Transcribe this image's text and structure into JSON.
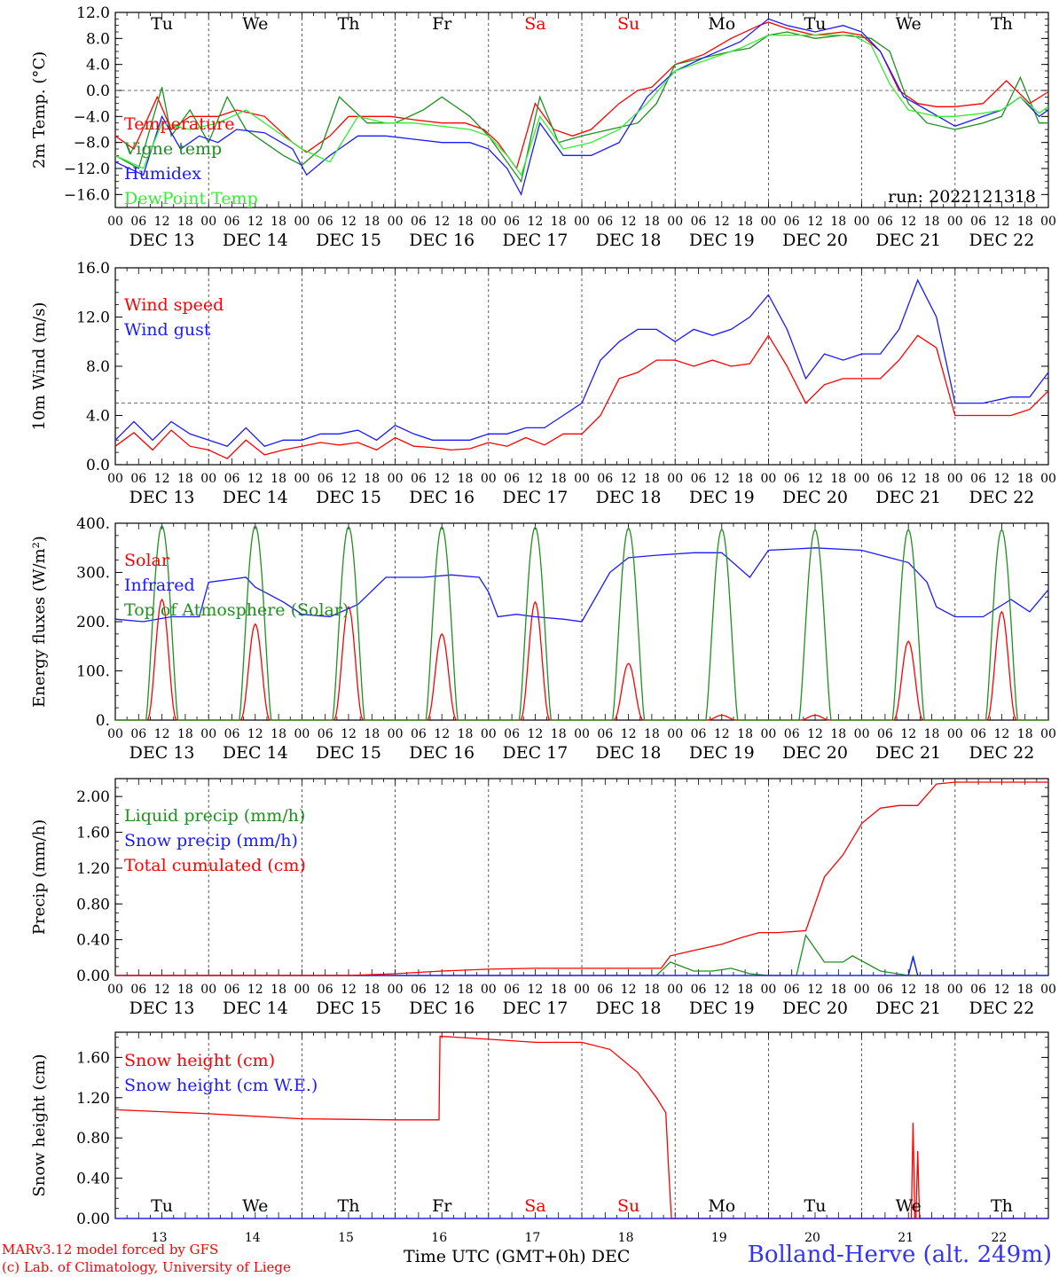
{
  "meta": {
    "run_label": "run: 2022121318",
    "credit_line1": "MARv3.12 model forced by GFS",
    "credit_line2": "(c) Lab. of Climatology, University of Liege",
    "station": "Bolland-Herve (alt. 249m)",
    "xaxis_title": "Time UTC (GMT+0h) DEC"
  },
  "colors": {
    "red": "#ff0000",
    "green": "#1f8f1f",
    "blue": "#1a1aff",
    "lightgreen": "#33ee33",
    "grey": "#555555"
  },
  "days": [
    "Tu",
    "We",
    "Th",
    "Fr",
    "Sa",
    "Su",
    "Mo",
    "Tu",
    "We",
    "Th"
  ],
  "weekend_days": [
    "Sa",
    "Su"
  ],
  "date_labels": [
    "DEC 13",
    "DEC 14",
    "DEC 15",
    "DEC 16",
    "DEC 17",
    "DEC 18",
    "DEC 19",
    "DEC 20",
    "DEC 21",
    "DEC 22"
  ],
  "hour_ticks": [
    "00",
    "06",
    "12",
    "18"
  ],
  "bottom_day_numbers": [
    "13",
    "14",
    "15",
    "16",
    "17",
    "18",
    "19",
    "20",
    "21",
    "22"
  ],
  "chart_data": [
    {
      "id": "temp",
      "type": "line",
      "ylabel": "2m Temp. (°C)",
      "ylim": [
        -18,
        12
      ],
      "yticks": [
        -16,
        -12,
        -8,
        -4,
        0,
        4,
        8,
        12
      ],
      "ytick_labels": [
        "−16.0",
        "−12.0",
        "−8.0",
        "−4.0",
        "0.0",
        "4.0",
        "8.0",
        "12.0"
      ],
      "ref_line": 0,
      "x_unit": "day_offset_from_DEC13_00UTC",
      "series": [
        {
          "name": "Temperature",
          "color": "red",
          "x": [
            0,
            0.2,
            0.45,
            0.6,
            0.8,
            1.1,
            1.3,
            1.6,
            1.9,
            2.05,
            2.3,
            2.5,
            2.7,
            2.95,
            3.2,
            3.5,
            3.75,
            3.95,
            4.1,
            4.3,
            4.5,
            4.7,
            4.9,
            5.1,
            5.4,
            5.6,
            5.75,
            6.0,
            6.3,
            6.6,
            6.9,
            7.0,
            7.2,
            7.5,
            7.8,
            8.0,
            8.2,
            8.4,
            8.6,
            8.8,
            9.0,
            9.3,
            9.55,
            9.8,
            10.0
          ],
          "values": [
            -7,
            -9,
            -1,
            -6,
            -4,
            -4,
            -3,
            -4,
            -8,
            -9.5,
            -7,
            -4,
            -4,
            -4,
            -4.5,
            -5,
            -5,
            -6,
            -8,
            -12,
            -2,
            -6,
            -7,
            -6,
            -2,
            0,
            0.5,
            4,
            5.5,
            8,
            10,
            10.5,
            9.5,
            8.5,
            9,
            8.5,
            6,
            0,
            -2,
            -2.5,
            -2.5,
            -2,
            1.5,
            -2,
            -0.2
          ]
        },
        {
          "name": "Vigne temp",
          "color": "green",
          "x": [
            0,
            0.25,
            0.5,
            0.6,
            0.8,
            1.0,
            1.2,
            1.4,
            1.6,
            1.8,
            2.0,
            2.2,
            2.4,
            2.7,
            3.0,
            3.3,
            3.5,
            3.8,
            4.0,
            4.2,
            4.35,
            4.55,
            4.75,
            5.0,
            5.3,
            5.6,
            5.8,
            6.0,
            6.3,
            6.6,
            6.8,
            7.0,
            7.2,
            7.5,
            7.8,
            8.1,
            8.3,
            8.5,
            8.7,
            9.0,
            9.3,
            9.5,
            9.7,
            9.9,
            10.0
          ],
          "values": [
            -10,
            -12,
            0.5,
            -7,
            -3,
            -8,
            -1,
            -6,
            -8,
            -10,
            -11.5,
            -9,
            -1,
            -5,
            -5,
            -3,
            -1,
            -4,
            -7,
            -11,
            -14,
            -1,
            -8,
            -7,
            -6,
            -5,
            -2,
            4,
            5,
            6,
            6.5,
            8.5,
            9,
            8,
            8.5,
            8,
            6,
            -2,
            -5,
            -6,
            -5,
            -4,
            2,
            -5,
            -5
          ]
        },
        {
          "name": "Humidex",
          "color": "blue",
          "x": [
            0,
            0.3,
            0.5,
            0.7,
            0.9,
            1.1,
            1.3,
            1.6,
            1.9,
            2.05,
            2.3,
            2.6,
            2.9,
            3.2,
            3.5,
            3.8,
            4.0,
            4.2,
            4.35,
            4.55,
            4.8,
            5.1,
            5.4,
            5.7,
            6.0,
            6.3,
            6.7,
            7.0,
            7.2,
            7.5,
            7.8,
            8.0,
            8.2,
            8.45,
            8.7,
            9.0,
            9.3,
            9.5,
            9.7,
            9.9,
            10.0
          ],
          "values": [
            -11,
            -13,
            -4,
            -9,
            -7,
            -8,
            -6,
            -6.5,
            -9,
            -13,
            -10,
            -7,
            -7,
            -7.5,
            -8,
            -8,
            -9,
            -12,
            -16,
            -5,
            -10,
            -10,
            -8,
            -1,
            3,
            5,
            7.5,
            11,
            10,
            9,
            10,
            9,
            6,
            -1,
            -3,
            -5.5,
            -4,
            -3,
            -1,
            -4,
            -3
          ]
        },
        {
          "name": "DewPoint Temp",
          "color": "lightgreen",
          "x": [
            0,
            0.3,
            0.5,
            0.8,
            1.1,
            1.4,
            1.7,
            2.0,
            2.3,
            2.6,
            2.9,
            3.2,
            3.5,
            3.8,
            4.0,
            4.2,
            4.35,
            4.55,
            4.8,
            5.1,
            5.4,
            5.7,
            6.0,
            6.3,
            6.7,
            7.0,
            7.3,
            7.6,
            7.9,
            8.1,
            8.3,
            8.5,
            8.8,
            9.0,
            9.3,
            9.5,
            9.7,
            9.9,
            10.0
          ],
          "values": [
            -10,
            -12,
            -5,
            -6,
            -5,
            -3,
            -6,
            -9,
            -11,
            -4,
            -5,
            -5,
            -5.5,
            -6,
            -7,
            -10,
            -13,
            -4,
            -9,
            -8,
            -6,
            -2,
            3,
            4.5,
            6.5,
            8.5,
            8.5,
            8.5,
            8.5,
            7,
            1,
            -3,
            -4,
            -4,
            -3.5,
            -3,
            -1,
            -3.5,
            -2.5
          ]
        }
      ]
    },
    {
      "id": "wind",
      "type": "line",
      "ylabel": "10m Wind (m/s)",
      "ylim": [
        0,
        16
      ],
      "yticks": [
        0,
        4,
        8,
        12,
        16
      ],
      "ytick_labels": [
        "0.0",
        "4.0",
        "8.0",
        "12.0",
        "16.0"
      ],
      "ref_line": 5,
      "series": [
        {
          "name": "Wind speed",
          "color": "red",
          "x": [
            0,
            0.2,
            0.4,
            0.6,
            0.8,
            1.0,
            1.2,
            1.4,
            1.6,
            1.8,
            2.0,
            2.2,
            2.4,
            2.6,
            2.8,
            3.0,
            3.2,
            3.4,
            3.6,
            3.8,
            4.0,
            4.2,
            4.4,
            4.6,
            4.8,
            5.0,
            5.2,
            5.4,
            5.6,
            5.8,
            6.0,
            6.2,
            6.4,
            6.6,
            6.8,
            7.0,
            7.2,
            7.4,
            7.6,
            7.8,
            8.0,
            8.2,
            8.4,
            8.6,
            8.8,
            9.0,
            9.3,
            9.6,
            9.8,
            10.0
          ],
          "values": [
            1.5,
            2.6,
            1.2,
            2.8,
            1.5,
            1.2,
            0.5,
            2,
            0.8,
            1.2,
            1.5,
            1.8,
            1.6,
            1.8,
            1.2,
            2.2,
            1.5,
            1.4,
            1.2,
            1.3,
            1.8,
            1.5,
            2.2,
            1.6,
            2.5,
            2.5,
            4,
            7,
            7.5,
            8.5,
            8.5,
            8,
            8.5,
            8,
            8.2,
            10.5,
            8,
            5,
            6.5,
            7,
            7,
            7,
            8.5,
            10.5,
            9.5,
            4,
            4,
            4,
            4.5,
            6
          ]
        },
        {
          "name": "Wind gust",
          "color": "blue",
          "x": [
            0,
            0.2,
            0.4,
            0.6,
            0.8,
            1.0,
            1.2,
            1.4,
            1.6,
            1.8,
            2.0,
            2.2,
            2.4,
            2.6,
            2.8,
            3.0,
            3.2,
            3.4,
            3.6,
            3.8,
            4.0,
            4.2,
            4.4,
            4.6,
            4.8,
            5.0,
            5.2,
            5.4,
            5.6,
            5.8,
            6.0,
            6.2,
            6.4,
            6.6,
            6.8,
            7.0,
            7.2,
            7.4,
            7.6,
            7.8,
            8.0,
            8.2,
            8.4,
            8.6,
            8.8,
            9.0,
            9.3,
            9.6,
            9.8,
            10.0
          ],
          "values": [
            2,
            3.5,
            2,
            3.5,
            2.5,
            2,
            1.5,
            3,
            1.5,
            2,
            2,
            2.5,
            2.5,
            2.8,
            2,
            3.2,
            2.5,
            2,
            2,
            2,
            2.5,
            2.5,
            3,
            3,
            4,
            5,
            8.5,
            10,
            11,
            11,
            10,
            11,
            10.5,
            11,
            12,
            13.8,
            11,
            7,
            9,
            8.5,
            9,
            9,
            11,
            15,
            12,
            5,
            5,
            5.5,
            5.5,
            7.5
          ]
        }
      ]
    },
    {
      "id": "energy",
      "type": "line",
      "ylabel": "Energy fluxes (W/m²)",
      "ylim": [
        0,
        400
      ],
      "yticks": [
        0,
        100,
        200,
        300,
        400
      ],
      "ytick_labels": [
        "0.",
        "100.",
        "200.",
        "300.",
        "400."
      ],
      "series": [
        {
          "name": "Solar",
          "color": "red",
          "peaks": [
            245,
            195,
            230,
            175,
            240,
            115,
            10,
            10,
            160,
            220
          ]
        },
        {
          "name": "Infrared",
          "color": "blue",
          "x": [
            0,
            0.3,
            0.6,
            0.9,
            1.0,
            1.4,
            1.5,
            1.8,
            2.0,
            2.3,
            2.6,
            2.9,
            3.1,
            3.3,
            3.6,
            3.9,
            4.0,
            4.1,
            4.3,
            4.5,
            4.8,
            5.0,
            5.3,
            5.5,
            5.8,
            6.2,
            6.5,
            6.8,
            7.0,
            7.5,
            8.0,
            8.3,
            8.5,
            8.7,
            8.8,
            9.0,
            9.3,
            9.6,
            9.8,
            10.0
          ],
          "values": [
            205,
            200,
            210,
            210,
            280,
            290,
            270,
            240,
            215,
            210,
            235,
            290,
            290,
            290,
            295,
            290,
            260,
            210,
            215,
            210,
            205,
            200,
            300,
            330,
            335,
            340,
            340,
            290,
            345,
            350,
            345,
            330,
            320,
            280,
            230,
            210,
            210,
            245,
            220,
            265
          ]
        },
        {
          "name": "Top of Atmosphere (Solar)",
          "color": "green",
          "peaks": [
            395,
            395,
            393,
            393,
            392,
            390,
            388,
            387,
            387,
            387
          ]
        }
      ]
    },
    {
      "id": "precip",
      "type": "line",
      "ylabel": "Precip (mm/h)",
      "ylim": [
        0,
        2.2
      ],
      "yticks": [
        0,
        0.4,
        0.8,
        1.2,
        1.6,
        2.0
      ],
      "ytick_labels": [
        "0.00",
        "0.40",
        "0.80",
        "1.20",
        "1.60",
        "2.00"
      ],
      "series": [
        {
          "name": "Liquid precip (mm/h)",
          "color": "green",
          "x": [
            0,
            5.8,
            5.95,
            6.2,
            6.4,
            6.6,
            6.8,
            7.0,
            7.3,
            7.4,
            7.6,
            7.8,
            7.9,
            8.2,
            8.5,
            8.55,
            8.6,
            10.0
          ],
          "values": [
            0,
            0,
            0.15,
            0.05,
            0.05,
            0.08,
            0.02,
            0,
            0,
            0.45,
            0.15,
            0.15,
            0.22,
            0.05,
            0,
            0.22,
            0,
            0
          ]
        },
        {
          "name": "Snow precip (mm/h)",
          "color": "blue",
          "x": [
            0,
            8.5,
            8.55,
            8.6,
            10.0
          ],
          "values": [
            0,
            0,
            0.2,
            0,
            0
          ]
        },
        {
          "name": "Total cumulated (cm)",
          "color": "red",
          "x": [
            0,
            2.5,
            3.0,
            3.5,
            4.0,
            4.5,
            5.0,
            5.5,
            5.85,
            5.95,
            6.2,
            6.5,
            6.7,
            6.9,
            7.1,
            7.4,
            7.6,
            7.8,
            8.0,
            8.2,
            8.4,
            8.6,
            8.8,
            9.0,
            10.0
          ],
          "values": [
            0,
            0,
            0.02,
            0.05,
            0.07,
            0.08,
            0.08,
            0.08,
            0.08,
            0.22,
            0.28,
            0.35,
            0.42,
            0.48,
            0.48,
            0.5,
            1.1,
            1.35,
            1.7,
            1.87,
            1.9,
            1.9,
            2.14,
            2.16,
            2.16
          ]
        }
      ]
    },
    {
      "id": "snow",
      "type": "line",
      "ylabel": "Snow height (cm)",
      "ylim": [
        0,
        1.85
      ],
      "yticks": [
        0,
        0.4,
        0.8,
        1.2,
        1.6
      ],
      "ytick_labels": [
        "0.00",
        "0.40",
        "0.80",
        "1.20",
        "1.60"
      ],
      "series": [
        {
          "name": "Snow height (cm)",
          "color": "red",
          "x": [
            0,
            1.0,
            2.0,
            3.0,
            3.47,
            3.48,
            4.0,
            4.5,
            5.0,
            5.3,
            5.6,
            5.8,
            5.9,
            5.93,
            5.96,
            10.0
          ],
          "values": [
            1.08,
            1.04,
            0.99,
            0.98,
            0.98,
            1.81,
            1.78,
            1.75,
            1.75,
            1.68,
            1.45,
            1.2,
            1.05,
            0.5,
            0,
            0
          ]
        },
        {
          "name": "Snow height (cm W.E.)",
          "color": "blue",
          "x": [
            0,
            10.0
          ],
          "values": [
            0,
            0
          ]
        }
      ],
      "spikes": [
        {
          "x": 8.55,
          "value": 0.95
        },
        {
          "x": 8.6,
          "value": 0.67
        }
      ]
    }
  ]
}
